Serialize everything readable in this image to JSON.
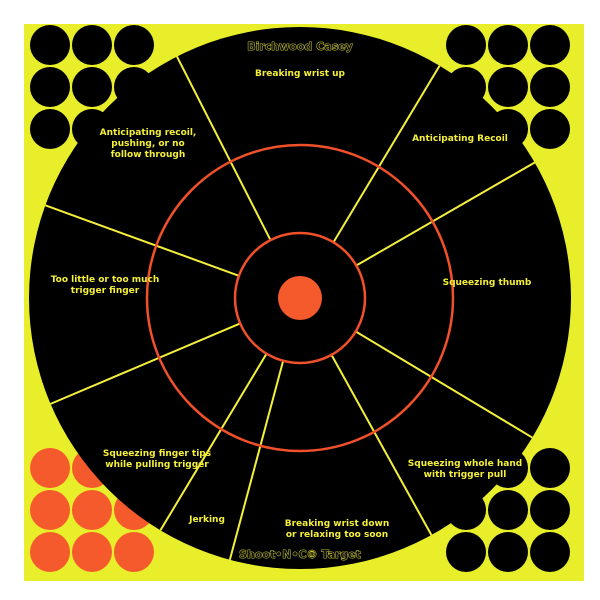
{
  "brand_top": "Birchwood Casey",
  "brand_bottom": "Shoot•N•C® Target",
  "colors": {
    "background": "#e8ef2a",
    "target": "#000000",
    "ring": "#f0502a",
    "divider": "#f4f03a",
    "label": "#f4f03a",
    "orange_dot": "#f55a2c"
  },
  "labels": [
    {
      "lines": [
        "Breaking wrist up"
      ]
    },
    {
      "lines": [
        "Anticipating Recoil"
      ]
    },
    {
      "lines": [
        "Squeezing thumb"
      ]
    },
    {
      "lines": [
        "Squeezing whole hand",
        "with trigger pull"
      ]
    },
    {
      "lines": [
        "Breaking wrist down",
        "or relaxing too soon"
      ]
    },
    {
      "lines": [
        "Jerking"
      ]
    },
    {
      "lines": [
        "Squeezing finger tips",
        "while pulling trigger"
      ]
    },
    {
      "lines": [
        "Too little or too much",
        "trigger finger"
      ]
    },
    {
      "lines": [
        "Anticipating recoil,",
        "pushing, or no",
        "follow through"
      ]
    }
  ]
}
